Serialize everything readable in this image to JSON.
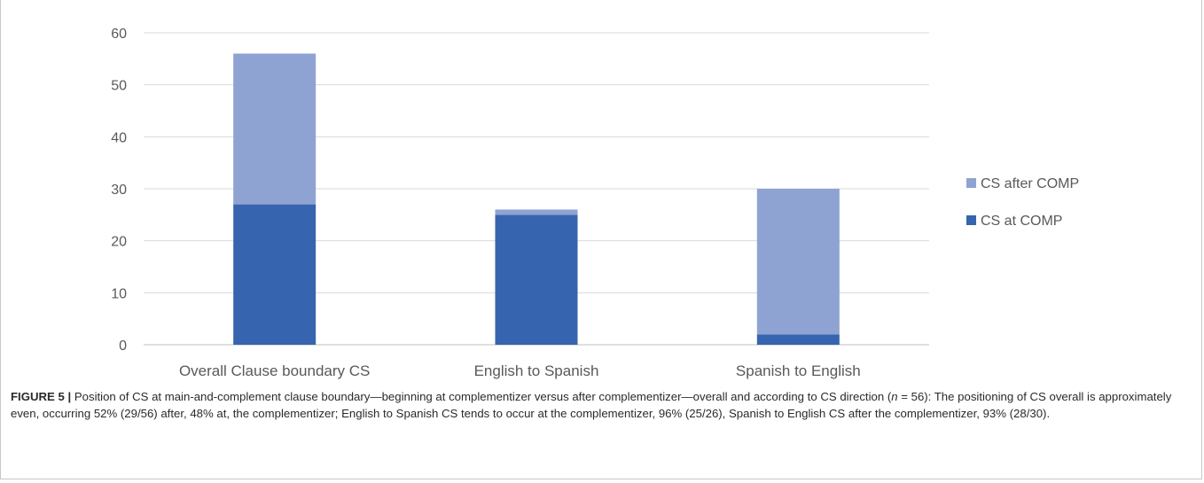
{
  "chart_data": {
    "type": "bar",
    "stacked": true,
    "categories": [
      "Overall Clause boundary CS",
      "English to Spanish",
      "Spanish to English"
    ],
    "series": [
      {
        "name": "CS at COMP",
        "values": [
          27,
          25,
          2
        ],
        "color": "#3764ae"
      },
      {
        "name": "CS after COMP",
        "values": [
          29,
          1,
          28
        ],
        "color": "#8fa3d3"
      }
    ],
    "ylim": [
      0,
      60
    ],
    "yticks": [
      0,
      10,
      20,
      30,
      40,
      50,
      60
    ],
    "grid": true,
    "legend": "right",
    "legend_order": [
      "CS after COMP",
      "CS at COMP"
    ]
  },
  "caption": {
    "label": "FIGURE 5 |",
    "text_1": " Position of CS at main-and-complement clause boundary—beginning at complementizer versus after complementizer—overall and according to CS direction (",
    "n_symbol": "n",
    "text_2": " = 56): The positioning of CS overall is approximately even, occurring 52% (29/56) after, 48% at, the complementizer; English to Spanish CS tends to occur at the complementizer, 96% (25/26), Spanish to English CS after the complementizer, 93% (28/30)."
  }
}
